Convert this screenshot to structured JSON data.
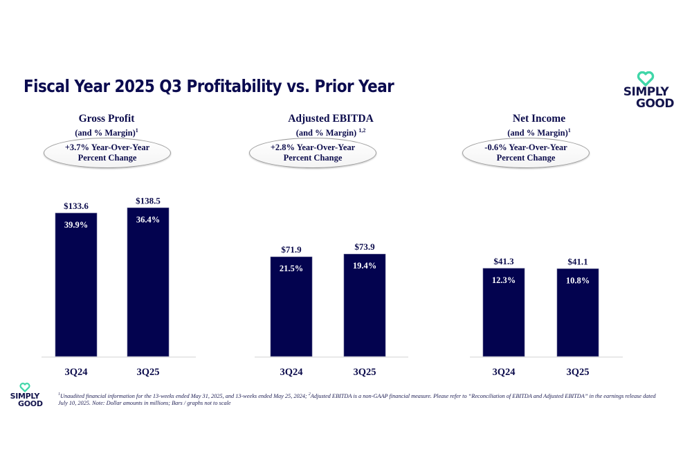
{
  "title": "Fiscal Year 2025 Q3 Profitability vs. Prior Year",
  "logo": {
    "line1": "SIMPLY",
    "line2": "GOOD",
    "heart_color": "#3fd6a8",
    "text_color": "#14154d"
  },
  "colors": {
    "bar": "#03034f",
    "text": "#0c0c4c",
    "axis": "#d9d9d9"
  },
  "panels": [
    {
      "title": "Gross Profit",
      "subtitle": "(and % Margin)",
      "sup": "1",
      "yoy_line1": "+3.7% Year-Over-Year",
      "yoy_line2": "Percent Change"
    },
    {
      "title": "Adjusted EBITDA",
      "subtitle": "(and % Margin) ",
      "sup": "1,2",
      "yoy_line1": "+2.8% Year-Over-Year",
      "yoy_line2": "Percent Change"
    },
    {
      "title": "Net Income",
      "subtitle": "(and % Margin)",
      "sup": "1",
      "yoy_line1": "-0.6% Year-Over-Year",
      "yoy_line2": "Percent Change"
    }
  ],
  "chart_data": [
    {
      "type": "bar",
      "title": "Gross Profit (and % Margin)",
      "categories": [
        "3Q24",
        "3Q25"
      ],
      "values": [
        133.6,
        138.5
      ],
      "value_labels": [
        "$133.6",
        "$138.5"
      ],
      "margin_labels": [
        "39.9%",
        "36.4%"
      ],
      "yoy_change": "+3.7%",
      "unit": "$ millions",
      "xlabel": "",
      "ylabel": "",
      "grid": false
    },
    {
      "type": "bar",
      "title": "Adjusted EBITDA (and % Margin)",
      "categories": [
        "3Q24",
        "3Q25"
      ],
      "values": [
        71.9,
        73.9
      ],
      "value_labels": [
        "$71.9",
        "$73.9"
      ],
      "margin_labels": [
        "21.5%",
        "19.4%"
      ],
      "yoy_change": "+2.8%",
      "unit": "$ millions",
      "xlabel": "",
      "ylabel": "",
      "grid": false
    },
    {
      "type": "bar",
      "title": "Net Income (and % Margin)",
      "categories": [
        "3Q24",
        "3Q25"
      ],
      "values": [
        41.3,
        41.1
      ],
      "value_labels": [
        "$41.3",
        "$41.1"
      ],
      "margin_labels": [
        "12.3%",
        "10.8%"
      ],
      "yoy_change": "-0.6%",
      "unit": "$ millions",
      "xlabel": "",
      "ylabel": "",
      "grid": false
    }
  ],
  "footnote": {
    "sup1": "1",
    "part1": "Unaudited financial information for the 13-weeks ended May 31, 2025, and 13-weeks ended May 25, 2024; ",
    "sup2": "2",
    "part2": "Adjusted EBITDA is a non-GAAP financial measure. Please refer to “Reconciliation of  EBITDA and Adjusted EBITDA” in the earnings release dated July 10, 2025. Note: Dollar amounts in millions; Bars / graphs not to scale"
  }
}
